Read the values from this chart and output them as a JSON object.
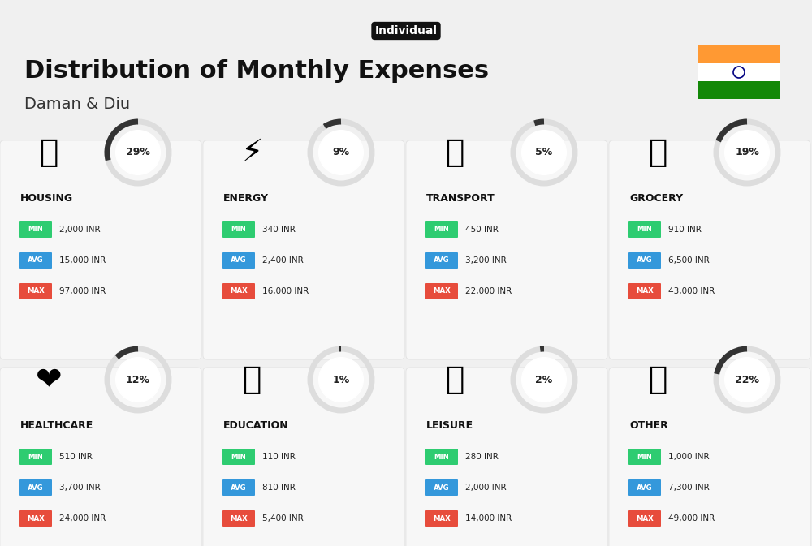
{
  "title": "Distribution of Monthly Expenses",
  "subtitle": "Individual",
  "location": "Daman & Diu",
  "background_color": "#f0f0f0",
  "categories": [
    {
      "name": "HOUSING",
      "pct": 29,
      "min": "2,000 INR",
      "avg": "15,000 INR",
      "max": "97,000 INR",
      "emoji": "🏗",
      "row": 0,
      "col": 0
    },
    {
      "name": "ENERGY",
      "pct": 9,
      "min": "340 INR",
      "avg": "2,400 INR",
      "max": "16,000 INR",
      "emoji": "⚡",
      "row": 0,
      "col": 1
    },
    {
      "name": "TRANSPORT",
      "pct": 5,
      "min": "450 INR",
      "avg": "3,200 INR",
      "max": "22,000 INR",
      "emoji": "🚌",
      "row": 0,
      "col": 2
    },
    {
      "name": "GROCERY",
      "pct": 19,
      "min": "910 INR",
      "avg": "6,500 INR",
      "max": "43,000 INR",
      "emoji": "🛒",
      "row": 0,
      "col": 3
    },
    {
      "name": "HEALTHCARE",
      "pct": 12,
      "min": "510 INR",
      "avg": "3,700 INR",
      "max": "24,000 INR",
      "emoji": "❤",
      "row": 1,
      "col": 0
    },
    {
      "name": "EDUCATION",
      "pct": 1,
      "min": "110 INR",
      "avg": "810 INR",
      "max": "5,400 INR",
      "emoji": "🎓",
      "row": 1,
      "col": 1
    },
    {
      "name": "LEISURE",
      "pct": 2,
      "min": "280 INR",
      "avg": "2,000 INR",
      "max": "14,000 INR",
      "emoji": "🛍",
      "row": 1,
      "col": 2
    },
    {
      "name": "OTHER",
      "pct": 22,
      "min": "1,000 INR",
      "avg": "7,300 INR",
      "max": "49,000 INR",
      "emoji": "👜",
      "row": 1,
      "col": 3
    }
  ],
  "color_min": "#2ecc71",
  "color_avg": "#3498db",
  "color_max": "#e74c3c",
  "india_flag_colors": [
    "#FF9933",
    "#FFFFFF",
    "#138808"
  ],
  "arc_color": "#333333",
  "arc_bg_color": "#dddddd"
}
